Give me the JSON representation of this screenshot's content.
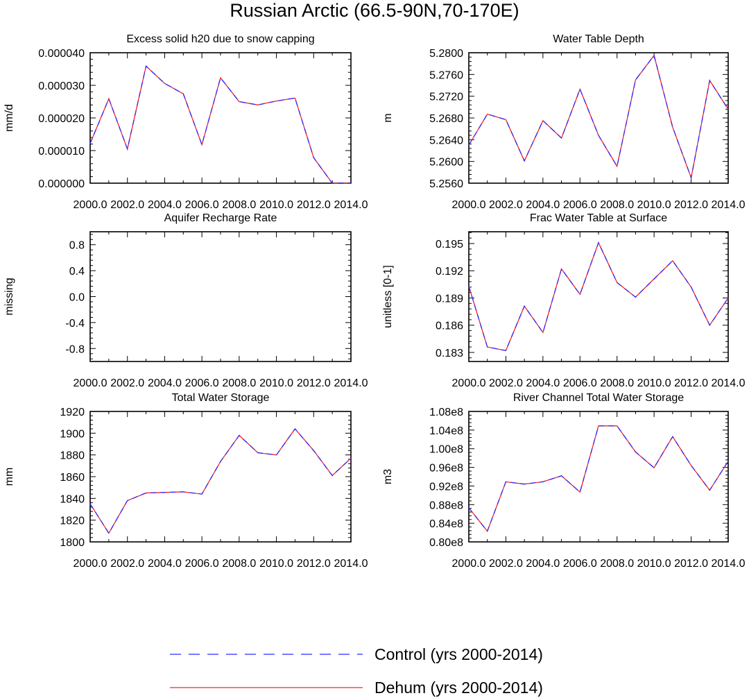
{
  "figure_title": "Russian Arctic (66.5-90N,70-170E)",
  "colors": {
    "control": "#2b2bff",
    "dehum": "#ff2020",
    "axis": "#000000"
  },
  "legend": {
    "control": {
      "label": "Control (yrs 2000-2014)",
      "style": "dashed"
    },
    "dehum": {
      "label": "Dehum (yrs 2000-2014)",
      "style": "solid"
    }
  },
  "chart_data": [
    {
      "type": "line",
      "title": "Excess solid h20 due to snow capping",
      "xlabel": "",
      "ylabel": "mm/d",
      "x": [
        2000,
        2001,
        2002,
        2003,
        2004,
        2005,
        2006,
        2007,
        2008,
        2009,
        2010,
        2011,
        2012,
        2013,
        2014
      ],
      "xlim": [
        2000,
        2014
      ],
      "xticks": [
        "2000.0",
        "2002.0",
        "2004.0",
        "2006.0",
        "2008.0",
        "2010.0",
        "2012.0",
        "2014.0"
      ],
      "ylim": [
        0,
        4e-05
      ],
      "yticks": [
        "0.000000",
        "0.000010",
        "0.000020",
        "0.000030",
        "0.000040"
      ],
      "series": [
        {
          "name": "Control (yrs 2000-2014)",
          "values": [
            1.22e-05,
            2.59e-05,
            1.05e-05,
            3.59e-05,
            3.06e-05,
            2.74e-05,
            1.18e-05,
            3.23e-05,
            2.5e-05,
            2.4e-05,
            2.52e-05,
            2.61e-05,
            7.8e-06,
            0.0,
            0.0
          ]
        },
        {
          "name": "Dehum (yrs 2000-2014)",
          "values": [
            1.22e-05,
            2.59e-05,
            1.05e-05,
            3.59e-05,
            3.06e-05,
            2.74e-05,
            1.18e-05,
            3.23e-05,
            2.5e-05,
            2.4e-05,
            2.52e-05,
            2.61e-05,
            7.8e-06,
            0.0,
            0.0
          ]
        }
      ]
    },
    {
      "type": "line",
      "title": "Water Table Depth",
      "xlabel": "",
      "ylabel": "m",
      "x": [
        2000,
        2001,
        2002,
        2003,
        2004,
        2005,
        2006,
        2007,
        2008,
        2009,
        2010,
        2011,
        2012,
        2013,
        2014
      ],
      "xlim": [
        2000,
        2014
      ],
      "xticks": [
        "2000.0",
        "2002.0",
        "2004.0",
        "2006.0",
        "2008.0",
        "2010.0",
        "2012.0",
        "2014.0"
      ],
      "ylim": [
        5.256,
        5.28
      ],
      "yticks": [
        "5.2560",
        "5.2600",
        "5.2640",
        "5.2680",
        "5.2720",
        "5.2760",
        "5.2800"
      ],
      "series": [
        {
          "name": "Control (yrs 2000-2014)",
          "values": [
            5.263,
            5.2687,
            5.2677,
            5.2601,
            5.2675,
            5.2643,
            5.2733,
            5.2648,
            5.2591,
            5.275,
            5.2795,
            5.2663,
            5.257,
            5.2749,
            5.2696
          ]
        },
        {
          "name": "Dehum (yrs 2000-2014)",
          "values": [
            5.263,
            5.2687,
            5.2677,
            5.2601,
            5.2675,
            5.2643,
            5.2733,
            5.2648,
            5.2591,
            5.275,
            5.2795,
            5.2663,
            5.257,
            5.2749,
            5.2696
          ]
        }
      ]
    },
    {
      "type": "line",
      "title": "Aquifer Recharge Rate",
      "xlabel": "",
      "ylabel": "missing",
      "x": [
        2000,
        2001,
        2002,
        2003,
        2004,
        2005,
        2006,
        2007,
        2008,
        2009,
        2010,
        2011,
        2012,
        2013,
        2014
      ],
      "xlim": [
        2000,
        2014
      ],
      "xticks": [
        "2000.0",
        "2002.0",
        "2004.0",
        "2006.0",
        "2008.0",
        "2010.0",
        "2012.0",
        "2014.0"
      ],
      "ylim": [
        -1,
        1
      ],
      "yticks": [
        "-0.8",
        "-0.4",
        "0.0",
        "0.4",
        "0.8"
      ],
      "series": []
    },
    {
      "type": "line",
      "title": "Frac Water Table at Surface",
      "xlabel": "",
      "ylabel": "unitless [0-1]",
      "x": [
        2000,
        2001,
        2002,
        2003,
        2004,
        2005,
        2006,
        2007,
        2008,
        2009,
        2010,
        2011,
        2012,
        2013,
        2014
      ],
      "xlim": [
        2000,
        2014
      ],
      "xticks": [
        "2000.0",
        "2002.0",
        "2004.0",
        "2006.0",
        "2008.0",
        "2010.0",
        "2012.0",
        "2014.0"
      ],
      "ylim": [
        0.182,
        0.1963
      ],
      "yticks": [
        "0.183",
        "0.186",
        "0.189",
        "0.192",
        "0.195"
      ],
      "series": [
        {
          "name": "Control (yrs 2000-2014)",
          "values": [
            0.1903,
            0.1836,
            0.1832,
            0.1881,
            0.1852,
            0.1922,
            0.1894,
            0.1951,
            0.1907,
            0.1891,
            0.1911,
            0.1931,
            0.1902,
            0.186,
            0.189
          ]
        },
        {
          "name": "Dehum (yrs 2000-2014)",
          "values": [
            0.1903,
            0.1836,
            0.1832,
            0.1881,
            0.1852,
            0.1922,
            0.1894,
            0.1951,
            0.1907,
            0.1891,
            0.1911,
            0.1931,
            0.1902,
            0.186,
            0.189
          ]
        }
      ]
    },
    {
      "type": "line",
      "title": "Total Water Storage",
      "xlabel": "",
      "ylabel": "mm",
      "x": [
        2000,
        2001,
        2002,
        2003,
        2004,
        2005,
        2006,
        2007,
        2008,
        2009,
        2010,
        2011,
        2012,
        2013,
        2014
      ],
      "xlim": [
        2000,
        2014
      ],
      "xticks": [
        "2000.0",
        "2002.0",
        "2004.0",
        "2006.0",
        "2008.0",
        "2010.0",
        "2012.0",
        "2014.0"
      ],
      "ylim": [
        1800,
        1920
      ],
      "yticks": [
        "1800",
        "1820",
        "1840",
        "1860",
        "1880",
        "1900",
        "1920"
      ],
      "series": [
        {
          "name": "Control (yrs 2000-2014)",
          "values": [
            1835,
            1808,
            1838,
            1845,
            1845.5,
            1846,
            1844,
            1874,
            1898,
            1882,
            1880,
            1904,
            1884,
            1861,
            1877
          ]
        },
        {
          "name": "Dehum (yrs 2000-2014)",
          "values": [
            1835,
            1808,
            1838,
            1845,
            1845.5,
            1846,
            1844,
            1874,
            1898,
            1882,
            1880,
            1904,
            1884,
            1861,
            1877
          ]
        }
      ]
    },
    {
      "type": "line",
      "title": "River Channel Total Water Storage",
      "xlabel": "",
      "ylabel": "m3",
      "x": [
        2000,
        2001,
        2002,
        2003,
        2004,
        2005,
        2006,
        2007,
        2008,
        2009,
        2010,
        2011,
        2012,
        2013,
        2014
      ],
      "xlim": [
        2000,
        2014
      ],
      "xticks": [
        "2000.0",
        "2002.0",
        "2004.0",
        "2006.0",
        "2008.0",
        "2010.0",
        "2012.0",
        "2014.0"
      ],
      "ylim": [
        80000000,
        108000000
      ],
      "yticks": [
        "0.80e8",
        "0.84e8",
        "0.88e8",
        "0.92e8",
        "0.96e8",
        "1.00e8",
        "1.04e8",
        "1.08e8"
      ],
      "series": [
        {
          "name": "Control (yrs 2000-2014)",
          "values": [
            87300000,
            82300000,
            92900000,
            92400000,
            92900000,
            94200000,
            90700000,
            104900000,
            104900000,
            99300000,
            95900000,
            102600000,
            96400000,
            91100000,
            97300000
          ]
        },
        {
          "name": "Dehum (yrs 2000-2014)",
          "values": [
            87300000,
            82300000,
            92900000,
            92400000,
            92900000,
            94200000,
            90700000,
            104900000,
            104900000,
            99300000,
            95900000,
            102600000,
            96400000,
            91100000,
            97300000
          ]
        }
      ]
    }
  ]
}
